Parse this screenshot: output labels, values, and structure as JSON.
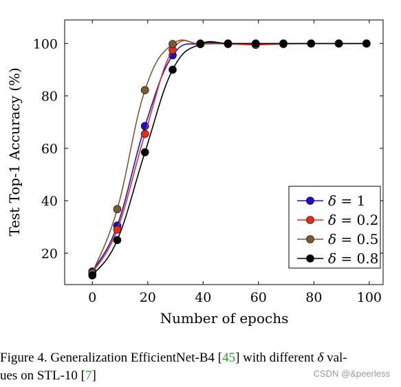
{
  "chart_data": {
    "type": "line",
    "title": "",
    "xlabel": "Number of epochs",
    "ylabel": "Test Top-1 Accuracy (%)",
    "xlim": [
      -10,
      105
    ],
    "ylim": [
      8,
      109
    ],
    "xticks": [
      0,
      20,
      40,
      60,
      80,
      100
    ],
    "yticks": [
      20,
      40,
      60,
      80,
      100
    ],
    "grid": false,
    "legend_position": "bottom-right",
    "series": [
      {
        "name": "δ = 1",
        "delta_symbol": "δ",
        "delta_value": "1",
        "color": "#1a0dcf",
        "x": [
          0,
          9,
          19,
          29,
          39,
          49,
          59,
          69,
          79,
          89,
          99
        ],
        "y": [
          13,
          30.5,
          68.5,
          95.5,
          100,
          100,
          99.8,
          100,
          100,
          100,
          100
        ]
      },
      {
        "name": "δ = 0.2",
        "delta_symbol": "δ",
        "delta_value": "0.2",
        "color": "#e52b1b",
        "x": [
          0,
          9,
          19,
          29,
          39,
          49,
          59,
          69,
          79,
          89,
          99
        ],
        "y": [
          12.5,
          29,
          65.5,
          97.5,
          99.8,
          99.8,
          99.5,
          99.8,
          100,
          100,
          100
        ]
      },
      {
        "name": "δ = 0.5",
        "delta_symbol": "δ",
        "delta_value": "0.5",
        "color": "#7b5a32",
        "x": [
          0,
          9,
          19,
          29,
          39,
          49,
          59,
          69,
          79,
          89,
          99
        ],
        "y": [
          12.5,
          36.8,
          82.2,
          99.8,
          99.8,
          100,
          100,
          100,
          100,
          100,
          100
        ]
      },
      {
        "name": "δ = 0.8",
        "delta_symbol": "δ",
        "delta_value": "0.8",
        "color": "#000000",
        "x": [
          0,
          9,
          19,
          29,
          39,
          49,
          59,
          69,
          79,
          89,
          99
        ],
        "y": [
          11.5,
          25,
          58.5,
          90,
          99.8,
          100,
          100,
          100,
          100,
          100,
          100
        ]
      }
    ]
  },
  "caption": {
    "prefix": "Figure 4. Generalization EfficientNet-B4 [",
    "ref1": "45",
    "middle": "] with different ",
    "delta": "δ",
    "suffix1": " val-",
    "line2": "ues on STL-10 [",
    "ref2": "7",
    "end": "]"
  },
  "watermark": "CSDN @&peerless"
}
